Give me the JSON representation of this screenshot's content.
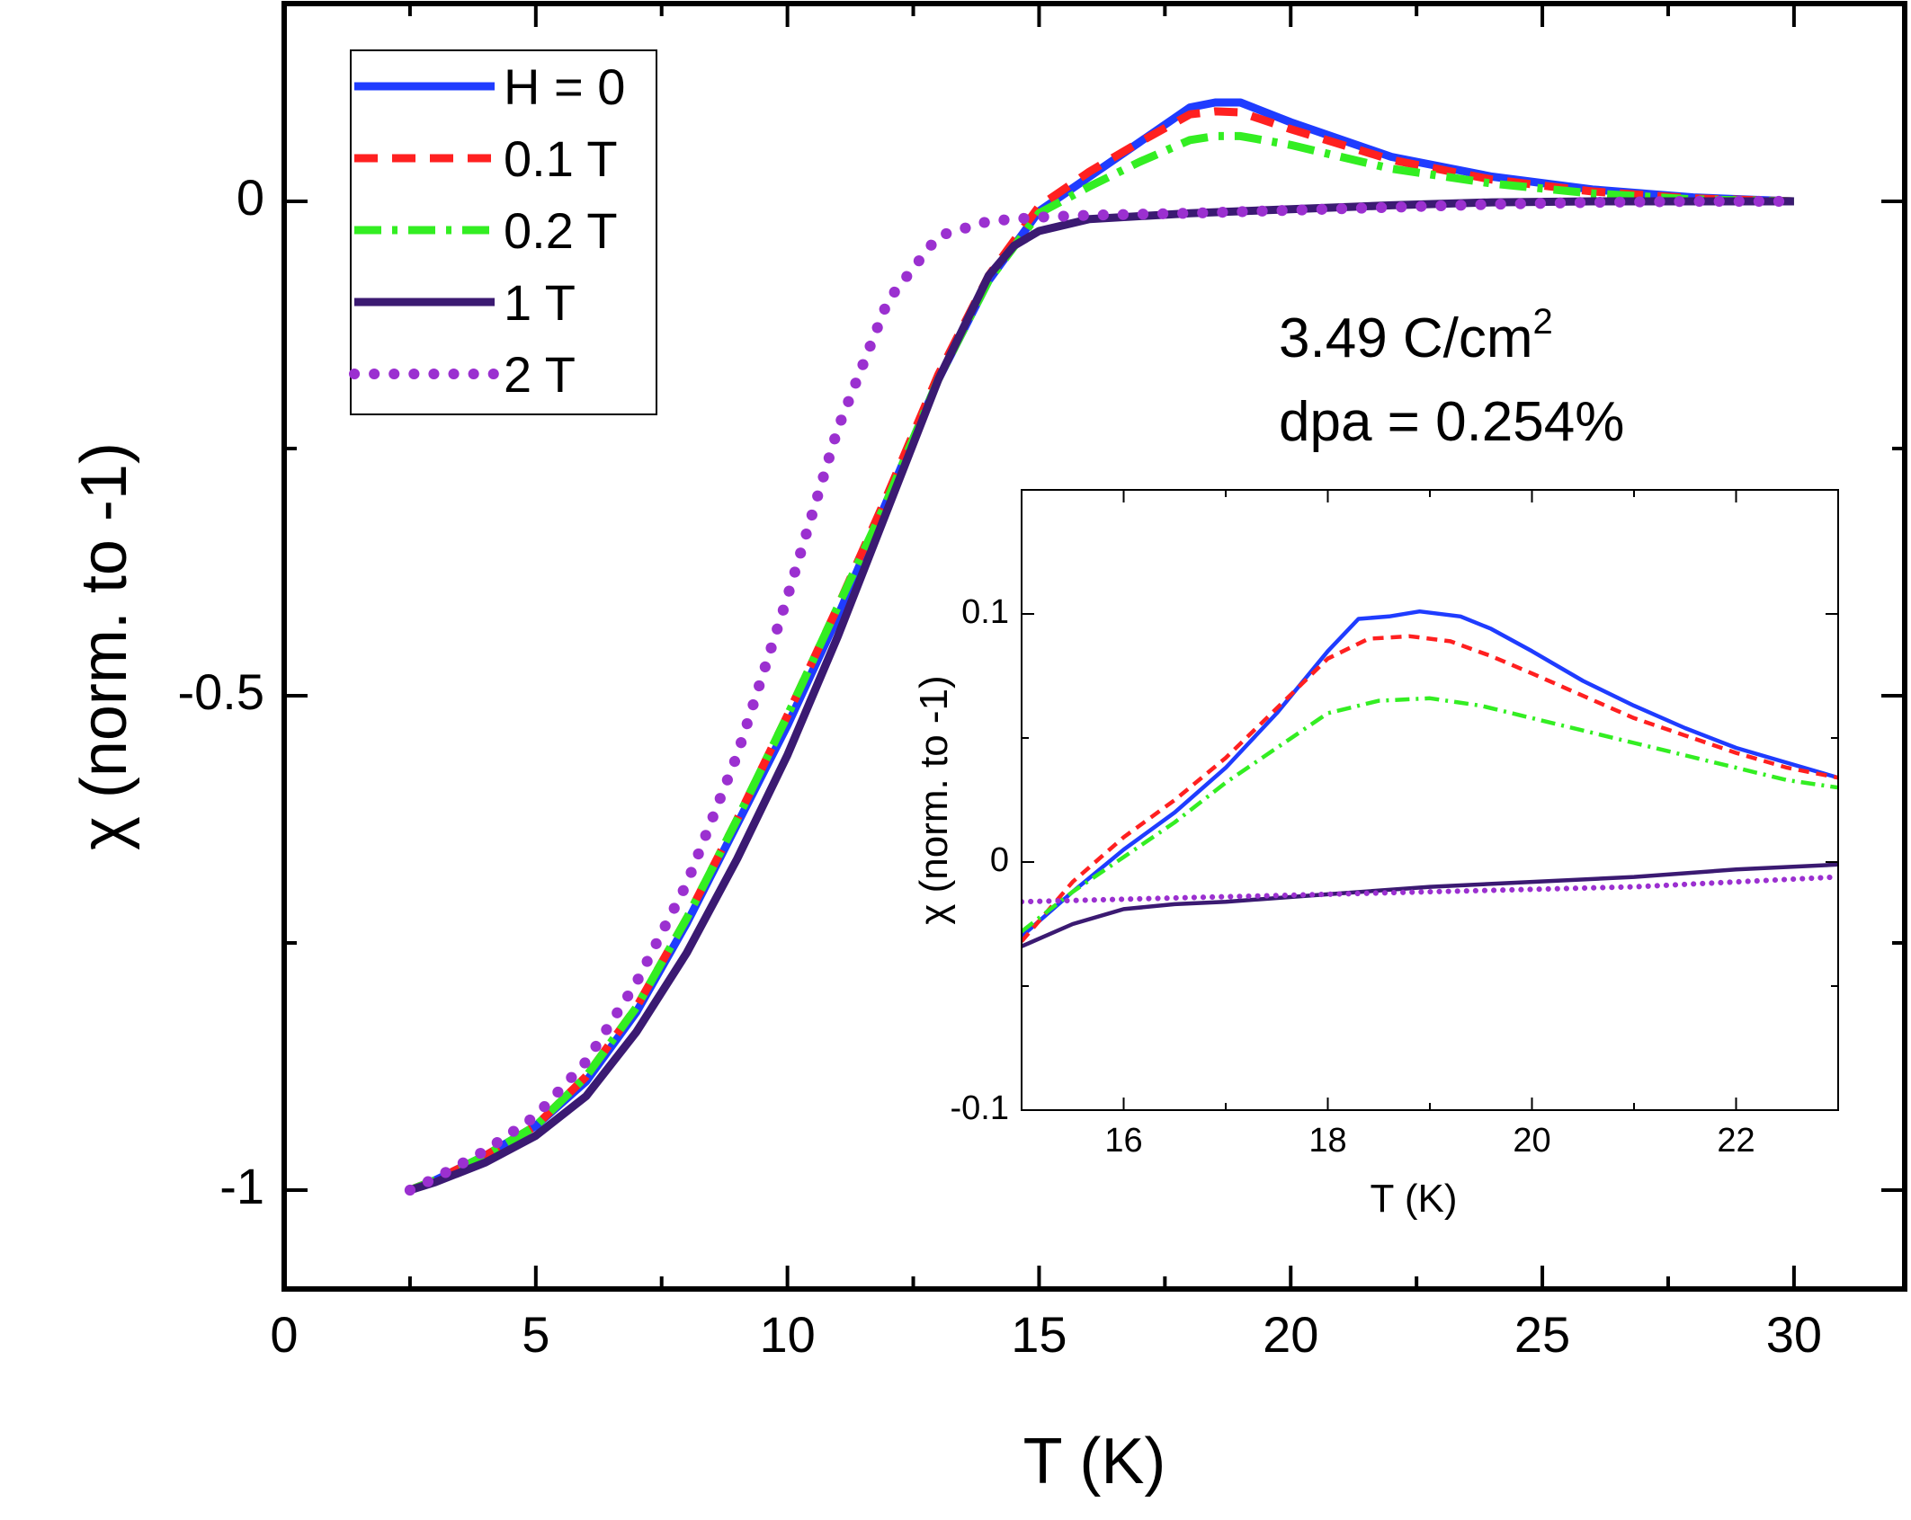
{
  "chart_data": [
    {
      "type": "line",
      "name": "main",
      "xlabel": "T (K)",
      "ylabel": "χ (norm. to -1)",
      "xlim": [
        0,
        32.2
      ],
      "ylim": [
        -1.1,
        0.2
      ],
      "xticks": [
        0,
        5,
        10,
        15,
        20,
        25,
        30
      ],
      "xtick_labels": [
        "0",
        "5",
        "10",
        "15",
        "20",
        "25",
        "30"
      ],
      "yticks": [
        -1,
        -0.5,
        0
      ],
      "ytick_labels": [
        "-1",
        "-0.5",
        "0"
      ],
      "annotations": [
        "3.49 C/cm",
        "2",
        "dpa = 0.254%"
      ],
      "legend_position": "top-left",
      "series": [
        {
          "name": "H = 0",
          "color": "#1f3cff",
          "style": "solid",
          "points": [
            [
              2.5,
              -1.0
            ],
            [
              3.0,
              -0.99
            ],
            [
              4.0,
              -0.965
            ],
            [
              5.0,
              -0.935
            ],
            [
              6.0,
              -0.89
            ],
            [
              7.0,
              -0.82
            ],
            [
              8.0,
              -0.73
            ],
            [
              9.0,
              -0.63
            ],
            [
              10.0,
              -0.53
            ],
            [
              11.0,
              -0.42
            ],
            [
              12.0,
              -0.3
            ],
            [
              13.0,
              -0.18
            ],
            [
              14.0,
              -0.08
            ],
            [
              15.0,
              -0.01
            ],
            [
              16.0,
              0.025
            ],
            [
              17.0,
              0.06
            ],
            [
              18.0,
              0.095
            ],
            [
              18.5,
              0.1
            ],
            [
              19.0,
              0.1
            ],
            [
              20.0,
              0.08
            ],
            [
              22.0,
              0.045
            ],
            [
              24.0,
              0.025
            ],
            [
              26.0,
              0.012
            ],
            [
              28.0,
              0.004
            ],
            [
              30.0,
              0.0
            ]
          ]
        },
        {
          "name": "0.1 T",
          "color": "#ff2020",
          "style": "dashed",
          "points": [
            [
              2.5,
              -1.0
            ],
            [
              3.0,
              -0.99
            ],
            [
              4.0,
              -0.965
            ],
            [
              5.0,
              -0.935
            ],
            [
              6.0,
              -0.885
            ],
            [
              7.0,
              -0.815
            ],
            [
              8.0,
              -0.725
            ],
            [
              9.0,
              -0.625
            ],
            [
              10.0,
              -0.52
            ],
            [
              11.0,
              -0.41
            ],
            [
              12.0,
              -0.295
            ],
            [
              13.0,
              -0.175
            ],
            [
              14.0,
              -0.075
            ],
            [
              15.0,
              -0.005
            ],
            [
              16.0,
              0.03
            ],
            [
              17.0,
              0.06
            ],
            [
              18.0,
              0.088
            ],
            [
              18.5,
              0.091
            ],
            [
              19.0,
              0.09
            ],
            [
              20.0,
              0.073
            ],
            [
              22.0,
              0.042
            ],
            [
              24.0,
              0.022
            ],
            [
              26.0,
              0.01
            ],
            [
              28.0,
              0.003
            ],
            [
              30.0,
              0.0
            ]
          ]
        },
        {
          "name": "0.2 T",
          "color": "#33ee22",
          "style": "dashdot",
          "points": [
            [
              2.5,
              -1.0
            ],
            [
              3.0,
              -0.99
            ],
            [
              4.0,
              -0.965
            ],
            [
              5.0,
              -0.935
            ],
            [
              6.0,
              -0.885
            ],
            [
              7.0,
              -0.815
            ],
            [
              8.0,
              -0.725
            ],
            [
              9.0,
              -0.625
            ],
            [
              10.0,
              -0.52
            ],
            [
              11.0,
              -0.41
            ],
            [
              12.0,
              -0.3
            ],
            [
              13.0,
              -0.18
            ],
            [
              14.0,
              -0.08
            ],
            [
              15.0,
              -0.012
            ],
            [
              16.0,
              0.015
            ],
            [
              17.0,
              0.04
            ],
            [
              18.0,
              0.062
            ],
            [
              18.5,
              0.066
            ],
            [
              19.0,
              0.066
            ],
            [
              20.0,
              0.057
            ],
            [
              22.0,
              0.033
            ],
            [
              24.0,
              0.018
            ],
            [
              26.0,
              0.008
            ],
            [
              28.0,
              0.002
            ],
            [
              30.0,
              0.0
            ]
          ]
        },
        {
          "name": "1 T",
          "color": "#3b1a72",
          "style": "solid",
          "points": [
            [
              2.5,
              -1.0
            ],
            [
              3.0,
              -0.992
            ],
            [
              4.0,
              -0.972
            ],
            [
              5.0,
              -0.945
            ],
            [
              6.0,
              -0.905
            ],
            [
              7.0,
              -0.84
            ],
            [
              8.0,
              -0.76
            ],
            [
              9.0,
              -0.665
            ],
            [
              10.0,
              -0.56
            ],
            [
              11.0,
              -0.44
            ],
            [
              12.0,
              -0.31
            ],
            [
              13.0,
              -0.18
            ],
            [
              14.0,
              -0.075
            ],
            [
              14.5,
              -0.045
            ],
            [
              15.0,
              -0.03
            ],
            [
              16.0,
              -0.018
            ],
            [
              18.0,
              -0.012
            ],
            [
              20.0,
              -0.008
            ],
            [
              22.0,
              -0.004
            ],
            [
              24.0,
              -0.001
            ],
            [
              26.0,
              0.0
            ],
            [
              28.0,
              0.0
            ],
            [
              30.0,
              0.0
            ]
          ]
        },
        {
          "name": "2 T",
          "color": "#9b30d0",
          "style": "dotted",
          "points": [
            [
              2.5,
              -1.0
            ],
            [
              3.0,
              -0.988
            ],
            [
              4.0,
              -0.96
            ],
            [
              5.0,
              -0.925
            ],
            [
              6.0,
              -0.87
            ],
            [
              7.0,
              -0.79
            ],
            [
              8.0,
              -0.69
            ],
            [
              9.0,
              -0.56
            ],
            [
              10.0,
              -0.4
            ],
            [
              11.0,
              -0.23
            ],
            [
              12.0,
              -0.1
            ],
            [
              13.0,
              -0.035
            ],
            [
              14.0,
              -0.02
            ],
            [
              15.0,
              -0.016
            ],
            [
              16.0,
              -0.014
            ],
            [
              18.0,
              -0.012
            ],
            [
              20.0,
              -0.009
            ],
            [
              22.0,
              -0.006
            ],
            [
              24.0,
              -0.003
            ],
            [
              26.0,
              -0.001
            ],
            [
              28.0,
              0.0
            ],
            [
              30.0,
              0.0
            ]
          ]
        }
      ]
    },
    {
      "type": "line",
      "name": "inset",
      "xlabel": "T (K)",
      "ylabel": "χ (norm. to -1)",
      "xlim": [
        15,
        23
      ],
      "ylim": [
        -0.1,
        0.15
      ],
      "xticks": [
        16,
        18,
        20,
        22
      ],
      "xtick_labels": [
        "16",
        "18",
        "20",
        "22"
      ],
      "yticks": [
        -0.1,
        0,
        0.1
      ],
      "ytick_labels": [
        "-0.1",
        "0",
        "0.1"
      ],
      "series": [
        {
          "name": "H = 0",
          "color": "#1f3cff",
          "style": "solid",
          "points": [
            [
              15.0,
              -0.03
            ],
            [
              15.5,
              -0.012
            ],
            [
              16.0,
              0.005
            ],
            [
              16.5,
              0.02
            ],
            [
              17.0,
              0.038
            ],
            [
              17.5,
              0.06
            ],
            [
              18.0,
              0.085
            ],
            [
              18.3,
              0.098
            ],
            [
              18.6,
              0.099
            ],
            [
              18.9,
              0.101
            ],
            [
              19.3,
              0.099
            ],
            [
              19.6,
              0.094
            ],
            [
              20.0,
              0.085
            ],
            [
              20.5,
              0.073
            ],
            [
              21.0,
              0.063
            ],
            [
              21.5,
              0.054
            ],
            [
              22.0,
              0.046
            ],
            [
              22.5,
              0.04
            ],
            [
              23.0,
              0.034
            ]
          ]
        },
        {
          "name": "0.1 T",
          "color": "#ff2020",
          "style": "dashed",
          "points": [
            [
              15.0,
              -0.032
            ],
            [
              15.5,
              -0.008
            ],
            [
              16.0,
              0.01
            ],
            [
              16.5,
              0.025
            ],
            [
              17.0,
              0.042
            ],
            [
              17.5,
              0.062
            ],
            [
              18.0,
              0.082
            ],
            [
              18.4,
              0.09
            ],
            [
              18.8,
              0.091
            ],
            [
              19.2,
              0.089
            ],
            [
              19.6,
              0.083
            ],
            [
              20.0,
              0.076
            ],
            [
              20.5,
              0.067
            ],
            [
              21.0,
              0.058
            ],
            [
              21.5,
              0.051
            ],
            [
              22.0,
              0.044
            ],
            [
              22.5,
              0.038
            ],
            [
              23.0,
              0.034
            ]
          ]
        },
        {
          "name": "0.2 T",
          "color": "#33ee22",
          "style": "dashdot",
          "points": [
            [
              15.0,
              -0.028
            ],
            [
              15.5,
              -0.012
            ],
            [
              16.0,
              0.002
            ],
            [
              16.5,
              0.016
            ],
            [
              17.0,
              0.032
            ],
            [
              17.5,
              0.046
            ],
            [
              18.0,
              0.06
            ],
            [
              18.5,
              0.065
            ],
            [
              19.0,
              0.066
            ],
            [
              19.5,
              0.063
            ],
            [
              20.0,
              0.058
            ],
            [
              20.5,
              0.053
            ],
            [
              21.0,
              0.048
            ],
            [
              21.5,
              0.043
            ],
            [
              22.0,
              0.038
            ],
            [
              22.5,
              0.033
            ],
            [
              23.0,
              0.03
            ]
          ]
        },
        {
          "name": "1 T",
          "color": "#3b1a72",
          "style": "solid",
          "points": [
            [
              15.0,
              -0.034
            ],
            [
              15.5,
              -0.025
            ],
            [
              16.0,
              -0.019
            ],
            [
              16.5,
              -0.017
            ],
            [
              17.0,
              -0.016
            ],
            [
              18.0,
              -0.013
            ],
            [
              19.0,
              -0.01
            ],
            [
              20.0,
              -0.008
            ],
            [
              21.0,
              -0.006
            ],
            [
              22.0,
              -0.003
            ],
            [
              23.0,
              -0.001
            ]
          ]
        },
        {
          "name": "2 T",
          "color": "#9b30d0",
          "style": "dotted",
          "points": [
            [
              15.0,
              -0.016
            ],
            [
              16.0,
              -0.015
            ],
            [
              17.0,
              -0.014
            ],
            [
              18.0,
              -0.013
            ],
            [
              19.0,
              -0.012
            ],
            [
              20.0,
              -0.011
            ],
            [
              21.0,
              -0.01
            ],
            [
              22.0,
              -0.008
            ],
            [
              23.0,
              -0.006
            ]
          ]
        }
      ]
    }
  ]
}
